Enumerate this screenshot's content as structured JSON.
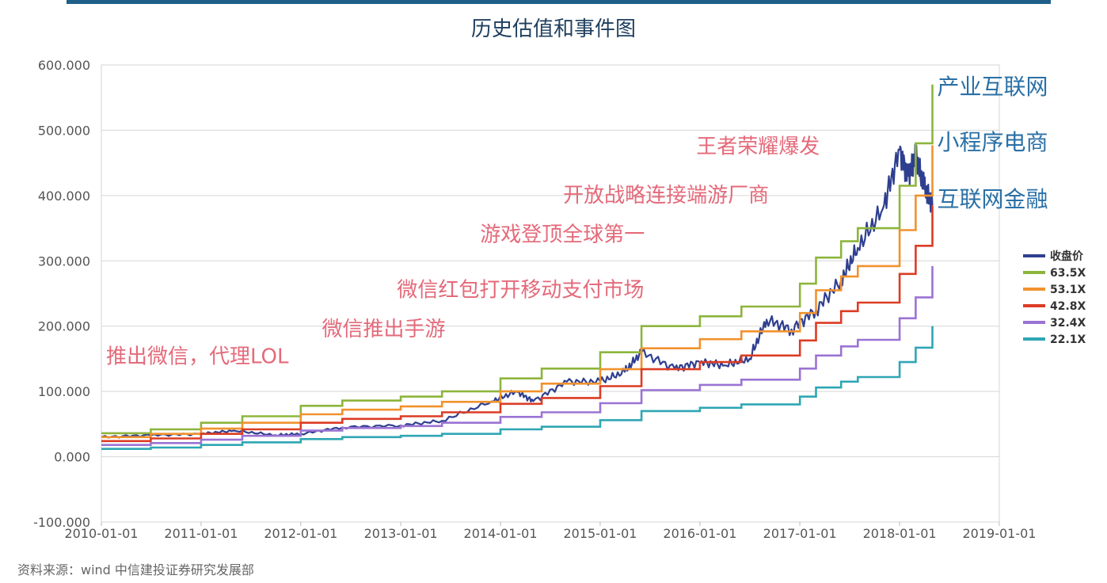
{
  "title": "历史估值和事件图",
  "source": "资料来源：wind 中信建投证券研究发展部",
  "chart_data": {
    "type": "line",
    "title": "历史估值和事件图",
    "ylim": [
      -100,
      600
    ],
    "yticks": [
      "600.000",
      "500.000",
      "400.000",
      "300.000",
      "200.000",
      "100.000",
      "0.000",
      "-100.000"
    ],
    "xlim": [
      "2010-01-01",
      "2019-01-01"
    ],
    "xticks": [
      "2010-01-01",
      "2011-01-01",
      "2012-01-01",
      "2013-01-01",
      "2014-01-01",
      "2015-01-01",
      "2016-01-01",
      "2017-01-01",
      "2018-01-01",
      "2019-01-01"
    ],
    "grid": true,
    "legend": "right",
    "series": [
      {
        "name": "收盘价",
        "color": "#2f3f8f",
        "x": [
          "2010-01-01",
          "2010-07-01",
          "2011-01-01",
          "2011-05-01",
          "2011-10-01",
          "2012-01-01",
          "2012-06-01",
          "2013-01-01",
          "2013-06-01",
          "2013-12-01",
          "2014-03-01",
          "2014-05-01",
          "2014-09-01",
          "2015-01-01",
          "2015-04-01",
          "2015-06-01",
          "2015-10-01",
          "2016-01-01",
          "2016-04-01",
          "2016-07-01",
          "2016-09-01",
          "2016-12-01",
          "2017-03-01",
          "2017-06-01",
          "2017-08-01",
          "2017-11-01",
          "2018-01-01",
          "2018-02-01",
          "2018-03-01",
          "2018-04-01",
          "2018-05-01"
        ],
        "values": [
          30,
          33,
          35,
          40,
          33,
          35,
          45,
          48,
          55,
          85,
          100,
          85,
          115,
          115,
          130,
          160,
          135,
          145,
          140,
          150,
          210,
          195,
          225,
          270,
          320,
          380,
          470,
          430,
          460,
          410,
          385
        ]
      },
      {
        "name": "63.5X",
        "color": "#8db53c",
        "x": [
          "2010-01-01",
          "2010-07-01",
          "2011-01-01",
          "2011-06-01",
          "2012-01-01",
          "2012-06-01",
          "2013-01-01",
          "2013-06-01",
          "2014-01-01",
          "2014-06-01",
          "2015-01-01",
          "2015-06-01",
          "2016-01-01",
          "2016-06-01",
          "2017-01-01",
          "2017-03-01",
          "2017-06-01",
          "2017-08-01",
          "2018-01-01",
          "2018-03-01",
          "2018-05-01"
        ],
        "values": [
          36,
          42,
          52,
          62,
          78,
          86,
          92,
          100,
          120,
          135,
          160,
          200,
          215,
          230,
          265,
          305,
          330,
          350,
          415,
          480,
          570
        ]
      },
      {
        "name": "53.1X",
        "color": "#f0922e",
        "x": [
          "2010-01-01",
          "2010-07-01",
          "2011-01-01",
          "2011-06-01",
          "2012-01-01",
          "2012-06-01",
          "2013-01-01",
          "2013-06-01",
          "2014-01-01",
          "2014-06-01",
          "2015-01-01",
          "2015-06-01",
          "2016-01-01",
          "2016-06-01",
          "2017-01-01",
          "2017-03-01",
          "2017-06-01",
          "2017-08-01",
          "2018-01-01",
          "2018-03-01",
          "2018-05-01"
        ],
        "values": [
          30,
          35,
          43,
          52,
          65,
          72,
          77,
          84,
          100,
          112,
          134,
          166,
          180,
          192,
          220,
          255,
          276,
          292,
          347,
          400,
          477
        ]
      },
      {
        "name": "42.8X",
        "color": "#dc3c24",
        "x": [
          "2010-01-01",
          "2010-07-01",
          "2011-01-01",
          "2011-06-01",
          "2012-01-01",
          "2012-06-01",
          "2013-01-01",
          "2013-06-01",
          "2014-01-01",
          "2014-06-01",
          "2015-01-01",
          "2015-06-01",
          "2016-01-01",
          "2016-06-01",
          "2017-01-01",
          "2017-03-01",
          "2017-06-01",
          "2017-08-01",
          "2018-01-01",
          "2018-03-01",
          "2018-05-01"
        ],
        "values": [
          24,
          28,
          35,
          42,
          52,
          58,
          62,
          68,
          81,
          90,
          108,
          134,
          145,
          155,
          178,
          205,
          223,
          236,
          280,
          323,
          385
        ]
      },
      {
        "name": "32.4X",
        "color": "#9b73d4",
        "x": [
          "2010-01-01",
          "2010-07-01",
          "2011-01-01",
          "2011-06-01",
          "2012-01-01",
          "2012-06-01",
          "2013-01-01",
          "2013-06-01",
          "2014-01-01",
          "2014-06-01",
          "2015-01-01",
          "2015-06-01",
          "2016-01-01",
          "2016-06-01",
          "2017-01-01",
          "2017-03-01",
          "2017-06-01",
          "2017-08-01",
          "2018-01-01",
          "2018-03-01",
          "2018-05-01"
        ],
        "values": [
          18,
          21,
          26,
          32,
          40,
          44,
          47,
          52,
          61,
          68,
          82,
          102,
          110,
          118,
          135,
          155,
          169,
          179,
          212,
          244,
          292
        ]
      },
      {
        "name": "22.1X",
        "color": "#2fa6b4",
        "x": [
          "2010-01-01",
          "2010-07-01",
          "2011-01-01",
          "2011-06-01",
          "2012-01-01",
          "2012-06-01",
          "2013-01-01",
          "2013-06-01",
          "2014-01-01",
          "2014-06-01",
          "2015-01-01",
          "2015-06-01",
          "2016-01-01",
          "2016-06-01",
          "2017-01-01",
          "2017-03-01",
          "2017-06-01",
          "2017-08-01",
          "2018-01-01",
          "2018-03-01",
          "2018-05-01"
        ],
        "values": [
          12,
          14,
          18,
          22,
          27,
          30,
          32,
          35,
          42,
          46,
          56,
          70,
          75,
          80,
          92,
          106,
          115,
          122,
          145,
          167,
          200
        ]
      }
    ],
    "annotations": [
      {
        "text": "推出微信，代理LOL",
        "x": "2010-01-01",
        "y": 143,
        "color": "#e46a7a",
        "size": 26
      },
      {
        "text": "微信推出手游",
        "x": "2012-03-01",
        "y": 185,
        "color": "#e46a7a",
        "size": 26
      },
      {
        "text": "微信红包打开移动支付市场",
        "x": "2012-12-01",
        "y": 245,
        "color": "#e46a7a",
        "size": 26
      },
      {
        "text": "游戏登顶全球第一",
        "x": "2013-10-01",
        "y": 330,
        "color": "#e46a7a",
        "size": 26
      },
      {
        "text": "开放战略连接端游厂商",
        "x": "2014-08-01",
        "y": 390,
        "color": "#e46a7a",
        "size": 26
      },
      {
        "text": "王者荣耀爆发",
        "x": "2015-12-01",
        "y": 465,
        "color": "#e46a7a",
        "size": 26
      },
      {
        "text": "产业互联网",
        "x": "2018-05-01",
        "y": 555,
        "color": "#2a70a6",
        "size": 28
      },
      {
        "text": "小程序电商",
        "x": "2018-05-01",
        "y": 470,
        "color": "#2a70a6",
        "size": 28
      },
      {
        "text": "互联网金融",
        "x": "2018-05-01",
        "y": 383,
        "color": "#2a70a6",
        "size": 28
      }
    ]
  }
}
